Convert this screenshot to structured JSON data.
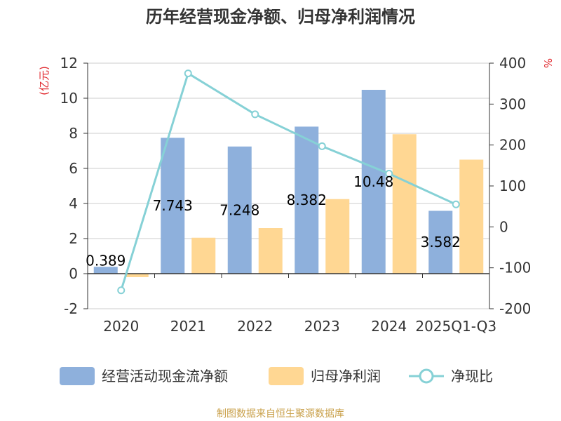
{
  "chart_data": {
    "type": "bar",
    "title": "历年经营现金净额、归母净利润情况",
    "categories": [
      "2020",
      "2021",
      "2022",
      "2023",
      "2024",
      "2025Q1-Q3"
    ],
    "series": [
      {
        "name": "经营活动现金流净额",
        "type": "bar",
        "axis": "left",
        "color": "#8eb0dc",
        "values": [
          0.389,
          7.743,
          7.248,
          8.382,
          10.48,
          3.582
        ],
        "labels": [
          "0.389",
          "7.743",
          "7.248",
          "8.382",
          "10.48",
          "3.582"
        ]
      },
      {
        "name": "归母净利润",
        "type": "bar",
        "axis": "left",
        "color": "#ffd793",
        "values": [
          -0.2,
          2.05,
          2.6,
          4.25,
          7.95,
          6.5
        ]
      },
      {
        "name": "净现比",
        "type": "line",
        "axis": "right",
        "color": "#86d1d6",
        "values": [
          -155,
          375,
          275,
          197,
          130,
          55
        ]
      }
    ],
    "y_left": {
      "label": "(亿元)",
      "min": -2,
      "max": 12,
      "ticks": [
        "-2",
        "0",
        "2",
        "4",
        "6",
        "8",
        "10",
        "12"
      ]
    },
    "y_right": {
      "label": "%",
      "min": -200,
      "max": 400,
      "ticks": [
        "-200",
        "-100",
        "0",
        "100",
        "200",
        "300",
        "400"
      ]
    },
    "grid": true,
    "legend_position": "bottom"
  },
  "colors": {
    "unit_label": "#e0262b",
    "source": "#c9a04a",
    "axis": "#333333",
    "grid": "#cccccc"
  },
  "footer": {
    "source": "制图数据来自恒生聚源数据库"
  }
}
